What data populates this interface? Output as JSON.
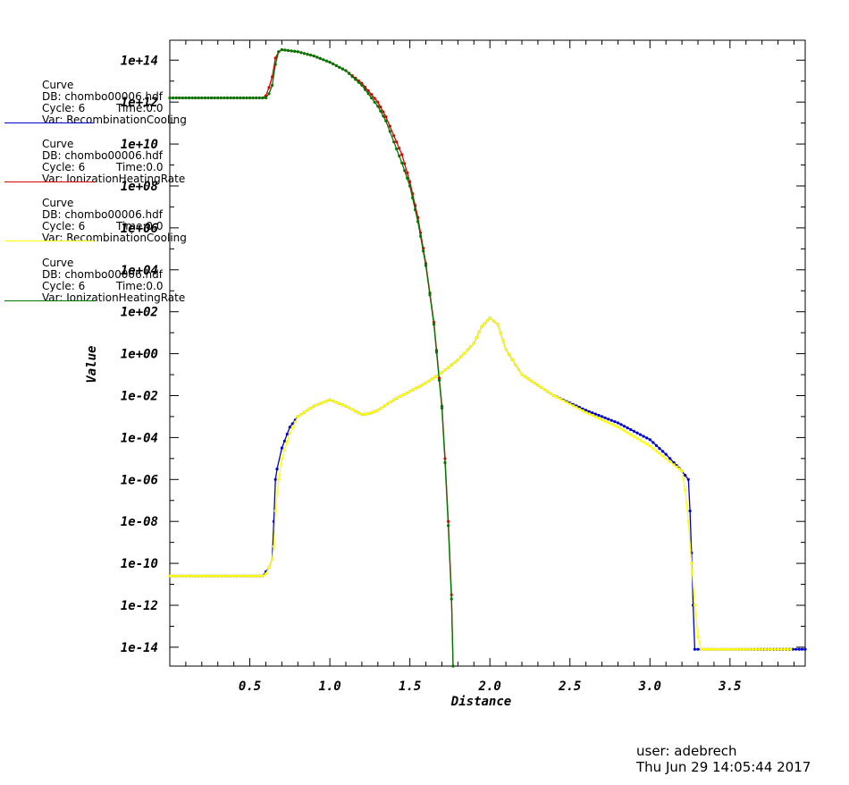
{
  "chart_data": {
    "type": "line",
    "title": "",
    "xlabel": "Distance",
    "ylabel": "Value",
    "xlim": [
      0,
      3.97
    ],
    "ylim_log10": [
      -14.9,
      14.95
    ],
    "y_scale": "log",
    "x_ticks": [
      "0.5",
      "1.0",
      "1.5",
      "2.0",
      "2.5",
      "3.0",
      "3.5"
    ],
    "y_ticks": [
      "1e+14",
      "1e+12",
      "1e+10",
      "1e+08",
      "1e+06",
      "1e+04",
      "1e+02",
      "1e+00",
      "1e-02",
      "1e-04",
      "1e-06",
      "1e-08",
      "1e-10",
      "1e-12",
      "1e-14"
    ],
    "grid": false,
    "legend_position": "left",
    "series": [
      {
        "name": "RecombinationCooling",
        "db": "chombo00006.hdf",
        "cycle": "6",
        "time": "0.0",
        "color": "#0000cc",
        "x": [
          0,
          0.58,
          0.6,
          0.62,
          0.64,
          0.65,
          0.66,
          0.67,
          0.7,
          0.75,
          0.8,
          0.9,
          1.0,
          1.1,
          1.2,
          1.25,
          1.3,
          1.4,
          1.5,
          1.6,
          1.7,
          1.8,
          1.9,
          1.95,
          2.0,
          2.05,
          2.1,
          2.2,
          2.4,
          2.6,
          2.8,
          3.0,
          3.1,
          3.15,
          3.2,
          3.24,
          3.25,
          3.26,
          3.27,
          3.28,
          3.3,
          3.5,
          3.97
        ],
        "y": [
          -10.6,
          -10.6,
          -10.4,
          -10.2,
          -9.8,
          -8.0,
          -6.0,
          -5.5,
          -4.5,
          -3.5,
          -3.0,
          -2.5,
          -2.2,
          -2.5,
          -2.9,
          -2.85,
          -2.7,
          -2.2,
          -1.8,
          -1.4,
          -0.9,
          -0.3,
          0.5,
          1.3,
          1.7,
          1.4,
          0.2,
          -1.0,
          -2.0,
          -2.7,
          -3.3,
          -4.1,
          -4.8,
          -5.2,
          -5.6,
          -6.0,
          -7.5,
          -9.5,
          -12.0,
          -14.1,
          -14.1,
          -14.1,
          -14.1
        ]
      },
      {
        "name": "IonizationHeatingRate",
        "db": "chombo00006.hdf",
        "cycle": "6",
        "time": "0.0",
        "color": "#dd0000",
        "x": [
          0,
          0.58,
          0.6,
          0.62,
          0.64,
          0.66,
          0.68,
          0.7,
          0.8,
          0.9,
          1.0,
          1.1,
          1.2,
          1.3,
          1.35,
          1.4,
          1.45,
          1.5,
          1.55,
          1.6,
          1.65,
          1.7,
          1.72,
          1.74,
          1.76,
          1.77
        ],
        "y": [
          12.2,
          12.2,
          12.3,
          12.7,
          13.2,
          14.1,
          14.4,
          14.5,
          14.4,
          14.2,
          13.9,
          13.5,
          12.9,
          12.0,
          11.3,
          10.4,
          9.5,
          8.2,
          6.5,
          4.3,
          1.5,
          -2.5,
          -5.0,
          -8.0,
          -11.5,
          -14.9
        ]
      },
      {
        "name": "RecombinationCooling",
        "db": "chombo00006.hdf",
        "cycle": "6",
        "time": "0.0",
        "color": "#ffff00",
        "x": [
          0,
          0.58,
          0.6,
          0.62,
          0.64,
          0.65,
          0.66,
          0.68,
          0.7,
          0.75,
          0.8,
          0.9,
          1.0,
          1.1,
          1.2,
          1.25,
          1.3,
          1.4,
          1.5,
          1.6,
          1.7,
          1.8,
          1.9,
          1.95,
          2.0,
          2.05,
          2.1,
          2.2,
          2.4,
          2.6,
          2.8,
          3.0,
          3.1,
          3.15,
          3.2,
          3.22,
          3.24,
          3.26,
          3.28,
          3.3,
          3.32,
          3.5,
          3.88
        ],
        "y": [
          -10.6,
          -10.6,
          -10.5,
          -10.2,
          -9.8,
          -9.2,
          -7.5,
          -6.0,
          -5.0,
          -3.8,
          -3.0,
          -2.5,
          -2.2,
          -2.5,
          -2.9,
          -2.85,
          -2.7,
          -2.2,
          -1.8,
          -1.4,
          -0.9,
          -0.3,
          0.5,
          1.3,
          1.7,
          1.4,
          0.2,
          -1.0,
          -2.0,
          -2.8,
          -3.5,
          -4.4,
          -5.0,
          -5.3,
          -5.6,
          -6.5,
          -8.0,
          -10.0,
          -12.0,
          -13.5,
          -14.1,
          -14.1,
          -14.1
        ]
      },
      {
        "name": "IonizationHeatingRate",
        "db": "chombo00006.hdf",
        "cycle": "6",
        "time": "0.0",
        "color": "#007700",
        "x": [
          0,
          0.58,
          0.6,
          0.62,
          0.64,
          0.66,
          0.68,
          0.7,
          0.8,
          0.9,
          1.0,
          1.1,
          1.2,
          1.3,
          1.35,
          1.4,
          1.45,
          1.5,
          1.55,
          1.6,
          1.65,
          1.7,
          1.72,
          1.74,
          1.76,
          1.77
        ],
        "y": [
          12.2,
          12.2,
          12.2,
          12.4,
          12.8,
          13.8,
          14.4,
          14.5,
          14.4,
          14.2,
          13.9,
          13.5,
          12.8,
          11.8,
          11.1,
          10.1,
          9.1,
          8.0,
          6.3,
          4.2,
          1.4,
          -2.6,
          -5.2,
          -8.2,
          -11.7,
          -14.9
        ]
      }
    ]
  },
  "legend": {
    "entries": [
      {
        "curve": "Curve",
        "db": "DB: chombo00006.hdf",
        "cycle": "Cycle: 6",
        "time": "Time:0.0",
        "var": "Var: RecombinationCooling",
        "color": "#0000cc"
      },
      {
        "curve": "Curve",
        "db": "DB: chombo00006.hdf",
        "cycle": "Cycle: 6",
        "time": "Time:0.0",
        "var": "Var: IonizationHeatingRate",
        "color": "#dd0000"
      },
      {
        "curve": "Curve",
        "db": "DB: chombo00006.hdf",
        "cycle": "Cycle: 6",
        "time": "Time:0.0",
        "var": "Var: RecombinationCooling",
        "color": "#ffff00"
      },
      {
        "curve": "Curve",
        "db": "DB: chombo00006.hdf",
        "cycle": "Cycle: 6",
        "time": "Time:0.0",
        "var": "Var: IonizationHeatingRate",
        "color": "#007700"
      }
    ]
  },
  "footer": {
    "user": "user: adebrech",
    "date": "Thu Jun 29 14:05:44 2017"
  }
}
